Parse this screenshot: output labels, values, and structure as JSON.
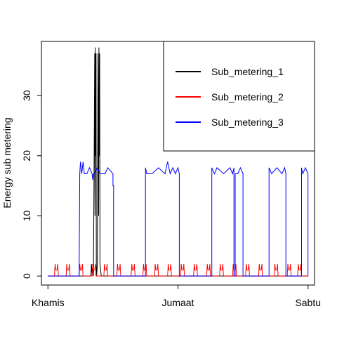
{
  "chart_data": {
    "type": "line",
    "title": "",
    "xlabel": "",
    "ylabel": "Energy sub metering",
    "xlim": [
      -0.05,
      2.05
    ],
    "ylim": [
      -1.5,
      39
    ],
    "x_ticks": [
      {
        "value": 0,
        "label": "Khamis"
      },
      {
        "value": 1,
        "label": "Jumaat"
      },
      {
        "value": 2,
        "label": "Sabtu"
      }
    ],
    "y_ticks": [
      0,
      10,
      20,
      30
    ],
    "grid": false,
    "legend": {
      "position": "top-right",
      "box": true
    },
    "series": [
      {
        "name": "Sub_metering_1",
        "color": "#000000",
        "x": [
          0,
          0.33,
          0.335,
          0.34,
          0.345,
          0.35,
          0.36,
          0.362,
          0.365,
          0.368,
          0.37,
          0.372,
          0.375,
          0.38,
          0.385,
          0.39,
          0.392,
          0.395,
          0.398,
          0.4,
          0.405,
          0.41,
          2
        ],
        "y": [
          0,
          0,
          2,
          0,
          2,
          0,
          37,
          10,
          38,
          20,
          37,
          2,
          0,
          2,
          37,
          10,
          38,
          20,
          37,
          2,
          1,
          0,
          0
        ]
      },
      {
        "name": "Sub_metering_2",
        "color": "#ff0000",
        "x": [
          0,
          0.05,
          0.055,
          0.06,
          0.07,
          0.075,
          0.08,
          0.14,
          0.145,
          0.15,
          0.16,
          0.165,
          0.17,
          0.24,
          0.245,
          0.25,
          0.26,
          0.265,
          0.27,
          0.34,
          0.345,
          0.35,
          0.36,
          0.365,
          0.37,
          0.43,
          0.435,
          0.44,
          0.45,
          0.455,
          0.46,
          0.53,
          0.535,
          0.54,
          0.55,
          0.555,
          0.56,
          0.64,
          0.645,
          0.65,
          0.66,
          0.665,
          0.67,
          0.73,
          0.735,
          0.74,
          0.75,
          0.755,
          0.76,
          0.82,
          0.825,
          0.83,
          0.84,
          0.845,
          0.85,
          0.92,
          0.925,
          0.93,
          0.94,
          0.945,
          0.95,
          1.02,
          1.025,
          1.03,
          1.04,
          1.045,
          1.05,
          1.12,
          1.125,
          1.13,
          1.14,
          1.145,
          1.15,
          1.22,
          1.225,
          1.23,
          1.24,
          1.245,
          1.25,
          1.32,
          1.325,
          1.33,
          1.34,
          1.345,
          1.35,
          1.42,
          1.425,
          1.43,
          1.44,
          1.445,
          1.45,
          1.52,
          1.525,
          1.53,
          1.54,
          1.545,
          1.55,
          1.62,
          1.625,
          1.63,
          1.64,
          1.645,
          1.65,
          1.74,
          1.745,
          1.75,
          1.76,
          1.765,
          1.77,
          1.84,
          1.845,
          1.85,
          1.86,
          1.865,
          1.87,
          1.92,
          1.925,
          1.93,
          1.94,
          1.945,
          1.95,
          2
        ],
        "y": [
          0,
          0,
          2,
          1,
          1,
          2,
          0,
          0,
          2,
          1,
          1,
          2,
          0,
          0,
          2,
          1,
          1,
          2,
          0,
          0,
          2,
          1,
          1,
          2,
          0,
          0,
          2,
          1,
          1,
          2,
          0,
          0,
          2,
          1,
          1,
          2,
          0,
          0,
          2,
          1,
          1,
          2,
          0,
          0,
          2,
          1,
          1,
          2,
          0,
          0,
          2,
          1,
          1,
          2,
          0,
          0,
          2,
          1,
          1,
          2,
          0,
          0,
          2,
          1,
          1,
          2,
          0,
          0,
          2,
          1,
          1,
          2,
          0,
          0,
          2,
          1,
          1,
          2,
          0,
          0,
          2,
          1,
          1,
          2,
          0,
          0,
          2,
          1,
          1,
          2,
          0,
          0,
          2,
          1,
          1,
          2,
          0,
          0,
          2,
          1,
          1,
          2,
          0,
          0,
          2,
          1,
          1,
          2,
          0,
          0,
          2,
          1,
          1,
          2,
          0,
          0,
          2,
          1,
          1,
          2,
          0,
          0
        ]
      },
      {
        "name": "Sub_metering_3",
        "color": "#0000ff",
        "x": [
          0,
          0.24,
          0.245,
          0.25,
          0.26,
          0.27,
          0.28,
          0.3,
          0.32,
          0.34,
          0.345,
          0.35,
          0.36,
          0.38,
          0.4,
          0.42,
          0.44,
          0.46,
          0.5,
          0.5,
          0.505,
          0.505,
          0.51,
          0.51,
          0.75,
          0.75,
          0.76,
          0.8,
          0.85,
          0.9,
          0.92,
          0.94,
          0.96,
          0.98,
          1.0,
          1.01,
          1.01,
          1.02,
          1.02,
          1.26,
          1.26,
          1.28,
          1.3,
          1.35,
          1.4,
          1.42,
          1.43,
          1.43,
          1.44,
          1.44,
          1.46,
          1.48,
          1.5,
          1.5,
          1.51,
          1.51,
          1.7,
          1.7,
          1.72,
          1.76,
          1.8,
          1.82,
          1.83,
          1.83,
          1.84,
          1.84,
          1.95,
          1.95,
          1.96,
          1.98,
          2.0,
          2.0
        ],
        "y": [
          0,
          0,
          17,
          19,
          17,
          19,
          17,
          17,
          18,
          17,
          16,
          17,
          17,
          18,
          17,
          17,
          17,
          18,
          17,
          15,
          15,
          0,
          0,
          0,
          0,
          18,
          17,
          17,
          18,
          17,
          19,
          17,
          18,
          17,
          18,
          17,
          0,
          0,
          0,
          0,
          18,
          17,
          18,
          17,
          18,
          17,
          18,
          0,
          0,
          17,
          17,
          18,
          17,
          0,
          0,
          0,
          0,
          18,
          17,
          18,
          17,
          18,
          17,
          0,
          0,
          0,
          0,
          18,
          17,
          18,
          17,
          0
        ]
      }
    ]
  }
}
